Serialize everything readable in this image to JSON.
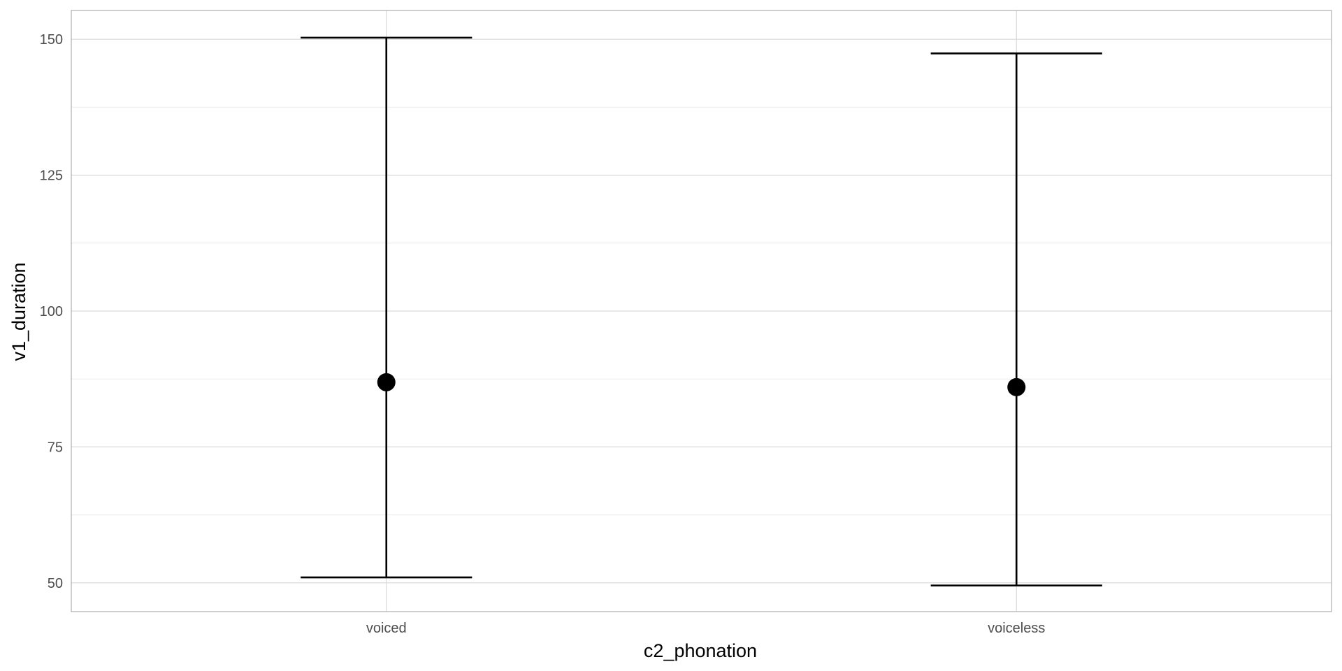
{
  "chart_data": {
    "type": "errorbar",
    "xlabel": "c2_phonation",
    "ylabel": "v1_duration",
    "categories": [
      "voiced",
      "voiceless"
    ],
    "points": [
      {
        "category": "voiced",
        "mean": 86.9,
        "lower": 51.0,
        "upper": 150.3
      },
      {
        "category": "voiceless",
        "mean": 86.0,
        "lower": 49.5,
        "upper": 147.4
      }
    ],
    "ylim": [
      44.7,
      155.3
    ],
    "yticks": [
      50,
      75,
      100,
      125,
      150
    ],
    "grid": true,
    "colors": {
      "marks": "#000000",
      "grid_major": "#d9d9d9",
      "grid_minor": "#ececec",
      "panel_border": "#b3b3b3"
    }
  }
}
